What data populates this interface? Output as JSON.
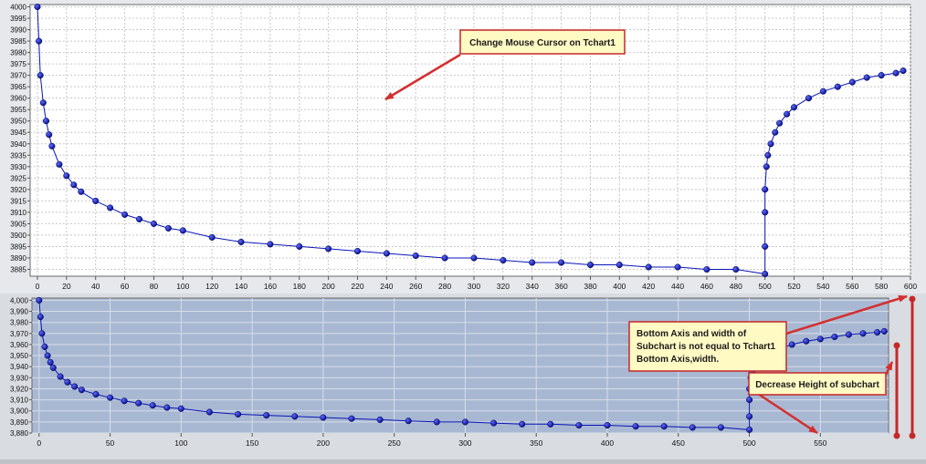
{
  "colors": {
    "main_bg": "#ffffff",
    "sub_bg": "#a9b8d2",
    "grid": "#c8c8c8",
    "series": "#0a14b8",
    "annotation_fill": "#fff9c4",
    "annotation_border": "#c62828",
    "arrow": "#d32f2f"
  },
  "annotations": {
    "cursor_note": "Change Mouse Cursor on Tchart1",
    "axis_note_lines": [
      "Bottom Axis and width of",
      "Subchart is not equal to Tchart1",
      "Bottom Axis,width."
    ],
    "height_note": "Decrease Height of subchart"
  },
  "chart_data": [
    {
      "type": "line",
      "name": "Tchart1",
      "xlim": [
        -5,
        600
      ],
      "ylim": [
        3882,
        4001
      ],
      "grid": true,
      "x_ticks": [
        0,
        20,
        40,
        60,
        80,
        100,
        120,
        140,
        160,
        180,
        200,
        220,
        240,
        260,
        280,
        300,
        320,
        340,
        360,
        380,
        400,
        420,
        440,
        460,
        480,
        500,
        520,
        540,
        560,
        580,
        600
      ],
      "x_tick_labels": [
        "0",
        "20",
        "40",
        "60",
        "80",
        "100",
        "120",
        "140",
        "160",
        "180",
        "200",
        "220",
        "240",
        "260",
        "280",
        "300",
        "320",
        "340",
        "360",
        "380",
        "400",
        "420",
        "440",
        "460",
        "480",
        "500",
        "520",
        "540",
        "560",
        "580",
        "600"
      ],
      "y_ticks": [
        3885,
        3890,
        3895,
        3900,
        3905,
        3910,
        3915,
        3920,
        3925,
        3930,
        3935,
        3940,
        3945,
        3950,
        3955,
        3960,
        3965,
        3970,
        3975,
        3980,
        3985,
        3990,
        3995,
        4000
      ],
      "y_tick_labels": [
        "3885",
        "3890",
        "3895",
        "3900",
        "3905",
        "3910",
        "3915",
        "3920",
        "3925",
        "3930",
        "3935",
        "3940",
        "3945",
        "3950",
        "3955",
        "3960",
        "3965",
        "3970",
        "3975",
        "3980",
        "3985",
        "3990",
        "3995",
        "4000"
      ],
      "series": [
        {
          "x": [
            0,
            1,
            2,
            4,
            6,
            8,
            10,
            15,
            20,
            25,
            30,
            40,
            50,
            60,
            70,
            80,
            90,
            100,
            120,
            140,
            160,
            180,
            200,
            220,
            240,
            260,
            280,
            300,
            320,
            340,
            360,
            380,
            400,
            420,
            440,
            460,
            480,
            500,
            500,
            500,
            500,
            501,
            502,
            504,
            507,
            510,
            515,
            520,
            530,
            540,
            550,
            560,
            570,
            580,
            590,
            595
          ],
          "y": [
            4000,
            3985,
            3970,
            3958,
            3950,
            3944,
            3939,
            3931,
            3926,
            3922,
            3919,
            3915,
            3912,
            3909,
            3907,
            3905,
            3903,
            3902,
            3899,
            3897,
            3896,
            3895,
            3894,
            3893,
            3892,
            3891,
            3890,
            3890,
            3889,
            3888,
            3888,
            3887,
            3887,
            3886,
            3886,
            3885,
            3885,
            3883,
            3895,
            3910,
            3920,
            3930,
            3935,
            3940,
            3945,
            3949,
            3953,
            3956,
            3960,
            3963,
            3965,
            3967,
            3969,
            3970,
            3971,
            3972
          ]
        }
      ]
    },
    {
      "type": "line",
      "name": "Subchart",
      "xlim": [
        -5,
        598
      ],
      "ylim": [
        3880,
        4002
      ],
      "grid": true,
      "x_ticks": [
        0,
        50,
        100,
        150,
        200,
        250,
        300,
        350,
        400,
        450,
        500,
        550
      ],
      "x_tick_labels": [
        "0",
        "50",
        "100",
        "150",
        "200",
        "250",
        "300",
        "350",
        "400",
        "450",
        "500",
        "550"
      ],
      "y_ticks": [
        3880,
        3890,
        3900,
        3910,
        3920,
        3930,
        3940,
        3950,
        3960,
        3970,
        3980,
        3990,
        4000
      ],
      "y_tick_labels": [
        "3,880",
        "3,890",
        "3,900",
        "3,910",
        "3,920",
        "3,930",
        "3,940",
        "3,950",
        "3,960",
        "3,970",
        "3,980",
        "3,990",
        "4,000"
      ],
      "series": [
        {
          "x": [
            0,
            1,
            2,
            4,
            6,
            8,
            10,
            15,
            20,
            25,
            30,
            40,
            50,
            60,
            70,
            80,
            90,
            100,
            120,
            140,
            160,
            180,
            200,
            220,
            240,
            260,
            280,
            300,
            320,
            340,
            360,
            380,
            400,
            420,
            440,
            460,
            480,
            500,
            500,
            500,
            500,
            501,
            502,
            504,
            507,
            510,
            515,
            520,
            530,
            540,
            550,
            560,
            570,
            580,
            590,
            595
          ],
          "y": [
            4000,
            3985,
            3970,
            3958,
            3950,
            3944,
            3939,
            3931,
            3926,
            3922,
            3919,
            3915,
            3912,
            3909,
            3907,
            3905,
            3903,
            3902,
            3899,
            3897,
            3896,
            3895,
            3894,
            3893,
            3892,
            3891,
            3890,
            3890,
            3889,
            3888,
            3888,
            3887,
            3887,
            3886,
            3886,
            3885,
            3885,
            3883,
            3895,
            3910,
            3920,
            3930,
            3935,
            3940,
            3945,
            3949,
            3953,
            3956,
            3960,
            3963,
            3965,
            3967,
            3969,
            3970,
            3971,
            3972
          ]
        }
      ]
    }
  ]
}
